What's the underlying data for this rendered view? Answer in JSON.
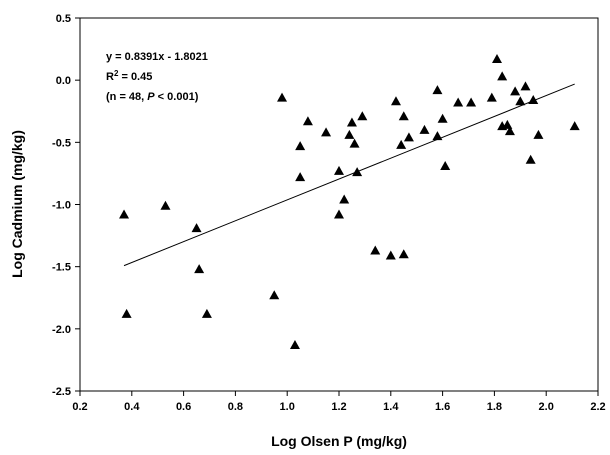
{
  "chart_data": {
    "type": "scatter",
    "title": "",
    "xlabel": "Log Olsen P (mg/kg)",
    "ylabel": "Log Cadmium (mg/kg)",
    "xlim": [
      0.2,
      2.2
    ],
    "ylim": [
      -2.5,
      0.5
    ],
    "xticks": [
      0.2,
      0.4,
      0.6,
      0.8,
      1.0,
      1.2,
      1.4,
      1.6,
      1.8,
      2.0,
      2.2
    ],
    "xtick_labels": [
      "0.2",
      "0.4",
      "0.6",
      "0.8",
      "1.0",
      "1.2",
      "1.4",
      "1.6",
      "1.8",
      "2.0",
      "2.2"
    ],
    "yticks": [
      -2.5,
      -2.0,
      -1.5,
      -1.0,
      -0.5,
      0.0,
      0.5
    ],
    "ytick_labels": [
      "-2.5",
      "-2.0",
      "-1.5",
      "-1.0",
      "-0.5",
      "0.0",
      "0.5"
    ],
    "grid": false,
    "marker": "triangle",
    "marker_color": "#000000",
    "line_color": "#000000",
    "points": [
      {
        "x": 0.37,
        "y": -1.08
      },
      {
        "x": 0.38,
        "y": -1.88
      },
      {
        "x": 0.53,
        "y": -1.01
      },
      {
        "x": 0.65,
        "y": -1.19
      },
      {
        "x": 0.66,
        "y": -1.52
      },
      {
        "x": 0.69,
        "y": -1.88
      },
      {
        "x": 0.95,
        "y": -1.73
      },
      {
        "x": 0.98,
        "y": -0.14
      },
      {
        "x": 1.03,
        "y": -2.13
      },
      {
        "x": 1.05,
        "y": -0.53
      },
      {
        "x": 1.05,
        "y": -0.78
      },
      {
        "x": 1.08,
        "y": -0.33
      },
      {
        "x": 1.15,
        "y": -0.42
      },
      {
        "x": 1.2,
        "y": -0.73
      },
      {
        "x": 1.2,
        "y": -1.08
      },
      {
        "x": 1.22,
        "y": -0.96
      },
      {
        "x": 1.24,
        "y": -0.44
      },
      {
        "x": 1.25,
        "y": -0.34
      },
      {
        "x": 1.26,
        "y": -0.51
      },
      {
        "x": 1.27,
        "y": -0.74
      },
      {
        "x": 1.29,
        "y": -0.29
      },
      {
        "x": 1.34,
        "y": -1.37
      },
      {
        "x": 1.4,
        "y": -1.41
      },
      {
        "x": 1.42,
        "y": -0.17
      },
      {
        "x": 1.44,
        "y": -0.52
      },
      {
        "x": 1.45,
        "y": -1.4
      },
      {
        "x": 1.45,
        "y": -0.29
      },
      {
        "x": 1.47,
        "y": -0.46
      },
      {
        "x": 1.53,
        "y": -0.4
      },
      {
        "x": 1.58,
        "y": -0.08
      },
      {
        "x": 1.58,
        "y": -0.45
      },
      {
        "x": 1.6,
        "y": -0.31
      },
      {
        "x": 1.61,
        "y": -0.69
      },
      {
        "x": 1.66,
        "y": -0.18
      },
      {
        "x": 1.71,
        "y": -0.18
      },
      {
        "x": 1.79,
        "y": -0.14
      },
      {
        "x": 1.81,
        "y": 0.17
      },
      {
        "x": 1.83,
        "y": 0.03
      },
      {
        "x": 1.83,
        "y": -0.37
      },
      {
        "x": 1.85,
        "y": -0.36
      },
      {
        "x": 1.86,
        "y": -0.41
      },
      {
        "x": 1.88,
        "y": -0.09
      },
      {
        "x": 1.9,
        "y": -0.17
      },
      {
        "x": 1.92,
        "y": -0.05
      },
      {
        "x": 1.94,
        "y": -0.64
      },
      {
        "x": 1.95,
        "y": -0.16
      },
      {
        "x": 1.97,
        "y": -0.44
      },
      {
        "x": 2.11,
        "y": -0.37
      }
    ],
    "regression": {
      "slope": 0.8391,
      "intercept": -1.8021,
      "x_range": [
        0.37,
        2.11
      ]
    },
    "annotations": {
      "equation": "y = 0.8391x - 1.8021",
      "r2_prefix": "R",
      "r2_sup": "2",
      "r2_value": " = 0.45",
      "n_open": "(n = 48, ",
      "p_italic": "P",
      "p_close": " < 0.001)"
    }
  }
}
